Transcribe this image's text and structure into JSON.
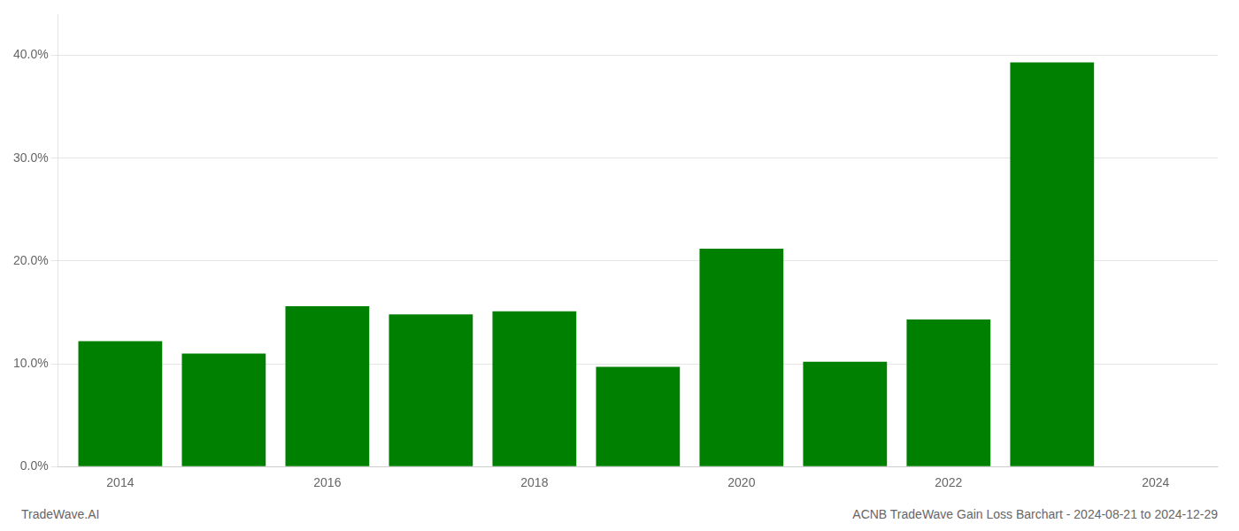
{
  "chart_data": {
    "type": "bar",
    "x": [
      2014,
      2015,
      2016,
      2017,
      2018,
      2019,
      2020,
      2021,
      2022,
      2023
    ],
    "values": [
      0.122,
      0.11,
      0.156,
      0.148,
      0.151,
      0.097,
      0.212,
      0.102,
      0.143,
      0.393
    ],
    "color": "#008000",
    "xlim": [
      2013.4,
      2024.6
    ],
    "xticks": [
      2014,
      2016,
      2018,
      2020,
      2022,
      2024
    ],
    "ylim": [
      0,
      0.44
    ],
    "yticks": [
      {
        "value": 0.0,
        "label": "0.0%"
      },
      {
        "value": 0.1,
        "label": "10.0%"
      },
      {
        "value": 0.2,
        "label": "20.0%"
      },
      {
        "value": 0.3,
        "label": "30.0%"
      },
      {
        "value": 0.4,
        "label": "40.0%"
      }
    ],
    "grid": "y",
    "annotations": [
      "TradeWave.AI",
      "ACNB TradeWave Gain Loss Barchart - 2024-08-21 to 2024-12-29"
    ]
  }
}
